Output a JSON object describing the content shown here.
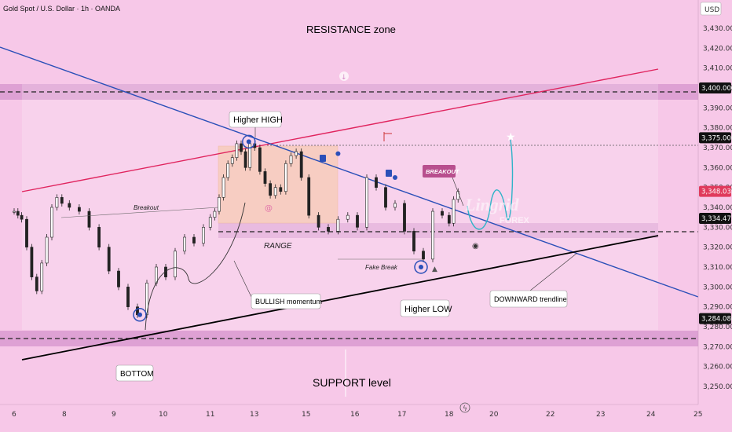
{
  "header": {
    "symbol": "Gold Spot / U.S. Dollar · 1h · OANDA",
    "currency": "USD"
  },
  "chart_data": {
    "type": "line",
    "title": "RESISTANCE zone",
    "ylim": [
      3245,
      3440
    ],
    "xlim": [
      6,
      25
    ],
    "y_ticks": [
      "3,430.000",
      "3,420.000",
      "3,410.000",
      "3,400.000",
      "3,390.000",
      "3,380.000",
      "3,370.000",
      "3,360.000",
      "3,350.000",
      "3,340.000",
      "3,330.000",
      "3,320.000",
      "3,310.000",
      "3,300.000",
      "3,290.000",
      "3,280.000",
      "3,270.000",
      "3,260.000",
      "3,250.000"
    ],
    "x_ticks": [
      "6",
      "8",
      "9",
      "10",
      "11",
      "13",
      "15",
      "16",
      "17",
      "18",
      "20",
      "22",
      "23",
      "24",
      "25"
    ],
    "price_tags": [
      {
        "label": "3,400.000",
        "value": 3400,
        "style": "dark"
      },
      {
        "label": "3,375.000",
        "value": 3375,
        "style": "dark"
      },
      {
        "label": "3,348.035",
        "value": 3348.035,
        "style": "red"
      },
      {
        "label": "3,334.473",
        "value": 3334.473,
        "style": "dark"
      },
      {
        "label": "3,284.080",
        "value": 3284.08,
        "style": "dark"
      }
    ],
    "series": [
      {
        "x": [
          6.0,
          6.15,
          6.3,
          6.5,
          6.7,
          6.9,
          7.1,
          7.3,
          7.5,
          7.7,
          7.9,
          8.1,
          8.3,
          8.5,
          8.7,
          8.9,
          9.1,
          9.3,
          9.5,
          9.7,
          9.9,
          10.1,
          10.3,
          10.5,
          10.7,
          10.9,
          11.1,
          11.3,
          11.5,
          11.7,
          11.9,
          12.1,
          12.3,
          12.5,
          12.7,
          12.9,
          13.1,
          13.3,
          13.5,
          13.7,
          13.9,
          14.1,
          14.3,
          14.5,
          14.7,
          14.9,
          15.1,
          15.3,
          15.5,
          15.7,
          15.9,
          16.1,
          16.3,
          16.5,
          16.7,
          16.9,
          17.1,
          17.3,
          17.5,
          17.7,
          17.9,
          18.1,
          18.3,
          18.5
        ],
        "values": [
          3338,
          3336,
          3334,
          3320,
          3305,
          3298,
          3312,
          3325,
          3340,
          3345,
          3342,
          3340,
          3338,
          3330,
          3320,
          3308,
          3300,
          3290,
          3286,
          3302,
          3310,
          3305,
          3318,
          3325,
          3322,
          3330,
          3335,
          3338,
          3345,
          3355,
          3362,
          3365,
          3372,
          3368,
          3360,
          3372,
          3370,
          3358,
          3352,
          3346,
          3350,
          3348,
          3362,
          3366,
          3368,
          3355,
          3336,
          3330,
          3328,
          3334,
          3336,
          3330,
          3355,
          3350,
          3340,
          3342,
          3328,
          3318,
          3314,
          3338,
          3336,
          3332,
          3344,
          3348
        ]
      }
    ],
    "markers": [
      {
        "x": 9.55,
        "y": 3286
      },
      {
        "x": 12.85,
        "y": 3373
      },
      {
        "x": 17.45,
        "y": 3310
      },
      {
        "x": 16.9,
        "y": 3355
      },
      {
        "x": 15.7,
        "y": 3367
      }
    ]
  },
  "annotations": {
    "resistance": "RESISTANCE zone",
    "higher_high": "Higher HIGH",
    "breakout_left": "Breakout",
    "range": "RANGE",
    "fake_break": "Fake Break",
    "bullish": "BULLISH momentum",
    "higher_low": "Higher LOW",
    "breakout_tag": "BREAKOUT",
    "downward": "DOWNWARD trendline",
    "bottom": "BOTTOM",
    "support": "SUPPORT level",
    "brand_main": "Lingrid",
    "brand_sub": "FOREX"
  },
  "colors": {
    "background": "#f7c8e8",
    "zone": "#d99ad0",
    "trend_red": "#e0245e",
    "trend_blue": "#2a4fb8",
    "trend_black": "#000000",
    "candle": "#222222",
    "marker": "#2a4fb8",
    "tag_dark": "#111111",
    "tag_red": "#e03a5c"
  }
}
